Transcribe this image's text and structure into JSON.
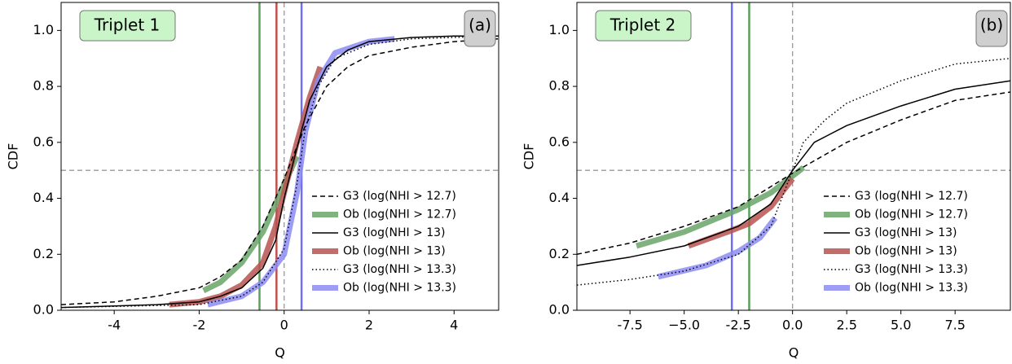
{
  "chart_data": [
    {
      "type": "line",
      "label": "Triplet 1",
      "panel": "(a)",
      "xlabel": "Q",
      "ylabel": "CDF",
      "xlim": [
        -5.25,
        5.05
      ],
      "ylim": [
        0,
        1.1
      ],
      "xticks": [
        -4,
        -2,
        0,
        2,
        4
      ],
      "yticks": [
        {
          "value": 0,
          "label": "0.0"
        },
        0.2,
        0.4,
        0.6,
        0.8,
        {
          "value": 1,
          "label": "1.0"
        }
      ],
      "ref_x": 0,
      "ref_y": 0.5,
      "vlines": [
        {
          "value": -0.58,
          "color": "#5aa05a"
        },
        {
          "value": -0.18,
          "color": "#c0504d"
        },
        {
          "value": 0.41,
          "color": "#6f6ff5"
        }
      ],
      "legend": "lower right",
      "series": [
        {
          "name": "G3 (log(NHI > 12.7)",
          "color": "#000000",
          "style": "dashed",
          "width": 1.5,
          "x": [
            -5.25,
            -4,
            -3,
            -2,
            -1.5,
            -1,
            -0.5,
            0,
            0.5,
            1,
            1.5,
            2,
            3,
            4,
            5.05
          ],
          "values": [
            0.02,
            0.03,
            0.05,
            0.08,
            0.12,
            0.18,
            0.3,
            0.47,
            0.66,
            0.8,
            0.87,
            0.91,
            0.94,
            0.96,
            0.97
          ]
        },
        {
          "name": "Ob (log(NHI > 12.7)",
          "color": "#6aa56a",
          "style": "solid",
          "width": 7,
          "x": [
            -1.9,
            -1.5,
            -1,
            -0.5,
            -0.2,
            0,
            0.3
          ],
          "values": [
            0.07,
            0.1,
            0.17,
            0.28,
            0.38,
            0.45,
            0.55
          ]
        },
        {
          "name": "G3 (log(NHI > 13)",
          "color": "#000000",
          "style": "solid",
          "width": 1.5,
          "x": [
            -5.25,
            -4,
            -3,
            -2,
            -1.5,
            -1,
            -0.5,
            -0.2,
            0,
            0.3,
            0.6,
            1,
            1.5,
            2,
            3,
            4,
            5.05
          ],
          "values": [
            0.01,
            0.015,
            0.02,
            0.03,
            0.05,
            0.08,
            0.15,
            0.25,
            0.4,
            0.58,
            0.75,
            0.87,
            0.93,
            0.96,
            0.975,
            0.98,
            0.98
          ]
        },
        {
          "name": "Ob (log(NHI > 13)",
          "color": "#b85450",
          "style": "solid",
          "width": 7,
          "x": [
            -2.7,
            -2,
            -1.5,
            -1,
            -0.5,
            -0.2,
            0,
            0.3,
            0.6,
            0.85
          ],
          "values": [
            0.02,
            0.03,
            0.05,
            0.09,
            0.17,
            0.3,
            0.42,
            0.6,
            0.76,
            0.87
          ]
        },
        {
          "name": "G3 (log(NHI > 13.3)",
          "color": "#000000",
          "style": "dotted",
          "width": 1.5,
          "x": [
            -5.25,
            -2,
            -1,
            -0.5,
            0,
            0.3,
            0.5,
            0.8,
            1.2,
            2,
            3,
            5.05
          ],
          "values": [
            0.01,
            0.02,
            0.05,
            0.1,
            0.22,
            0.45,
            0.65,
            0.8,
            0.9,
            0.95,
            0.97,
            0.98
          ]
        },
        {
          "name": "Ob (log(NHI > 13.3)",
          "color": "#8c8cf5",
          "style": "solid",
          "width": 7,
          "x": [
            -1.8,
            -1,
            -0.5,
            0,
            0.3,
            0.5,
            0.8,
            1.2,
            2,
            2.6
          ],
          "values": [
            0.02,
            0.05,
            0.1,
            0.2,
            0.42,
            0.64,
            0.82,
            0.92,
            0.96,
            0.97
          ]
        }
      ]
    },
    {
      "type": "line",
      "label": "Triplet 2",
      "panel": "(b)",
      "xlabel": "Q",
      "ylabel": "CDF",
      "xlim": [
        -9.95,
        10.05
      ],
      "ylim": [
        0,
        1.1
      ],
      "xticks": [
        -7.5,
        {
          "value": -5,
          "label": "−5.0"
        },
        -2.5,
        {
          "value": 0,
          "label": "0.0"
        },
        2.5,
        {
          "value": 5,
          "label": "5.0"
        },
        7.5
      ],
      "yticks": [
        {
          "value": 0,
          "label": "0.0"
        },
        0.2,
        0.4,
        0.6,
        0.8,
        {
          "value": 1,
          "label": "1.0"
        }
      ],
      "ref_x": 0,
      "ref_y": 0.5,
      "vlines": [
        {
          "value": -2.8,
          "color": "#6f6ff5"
        },
        {
          "value": -2.0,
          "color": "#5aa05a"
        }
      ],
      "legend": "lower right",
      "series": [
        {
          "name": "G3 (log(NHI > 12.7)",
          "color": "#000000",
          "style": "dashed",
          "width": 1.5,
          "x": [
            -9.95,
            -7.5,
            -5,
            -2.5,
            0,
            2.5,
            5,
            7.5,
            10.05
          ],
          "values": [
            0.2,
            0.24,
            0.3,
            0.37,
            0.49,
            0.6,
            0.68,
            0.75,
            0.78
          ]
        },
        {
          "name": "Ob (log(NHI > 12.7)",
          "color": "#6aa56a",
          "style": "solid",
          "width": 7,
          "x": [
            -7.2,
            -5,
            -2.5,
            -1,
            0,
            0.5
          ],
          "values": [
            0.23,
            0.28,
            0.36,
            0.42,
            0.48,
            0.51
          ]
        },
        {
          "name": "G3 (log(NHI > 13)",
          "color": "#000000",
          "style": "solid",
          "width": 1.5,
          "x": [
            -9.95,
            -7.5,
            -5,
            -2.5,
            -1,
            0,
            1,
            2.5,
            5,
            7.5,
            10.05
          ],
          "values": [
            0.16,
            0.19,
            0.23,
            0.3,
            0.38,
            0.5,
            0.6,
            0.66,
            0.73,
            0.79,
            0.82
          ]
        },
        {
          "name": "Ob (log(NHI > 13)",
          "color": "#b85450",
          "style": "solid",
          "width": 7,
          "x": [
            -4.8,
            -3,
            -2,
            -1,
            0
          ],
          "values": [
            0.23,
            0.28,
            0.31,
            0.37,
            0.47
          ]
        },
        {
          "name": "G3 (log(NHI > 13.3)",
          "color": "#000000",
          "style": "dotted",
          "width": 1.5,
          "x": [
            -9.95,
            -7.5,
            -5,
            -2.5,
            -1,
            0,
            0.5,
            1.5,
            2.5,
            5,
            7.5,
            10.05
          ],
          "values": [
            0.09,
            0.11,
            0.14,
            0.2,
            0.3,
            0.5,
            0.6,
            0.68,
            0.74,
            0.82,
            0.88,
            0.9
          ]
        },
        {
          "name": "Ob (log(NHI > 13.3)",
          "color": "#8c8cf5",
          "style": "solid",
          "width": 7,
          "x": [
            -6.2,
            -4,
            -2.5,
            -1.5,
            -0.8
          ],
          "values": [
            0.12,
            0.16,
            0.21,
            0.26,
            0.33
          ]
        }
      ]
    }
  ]
}
